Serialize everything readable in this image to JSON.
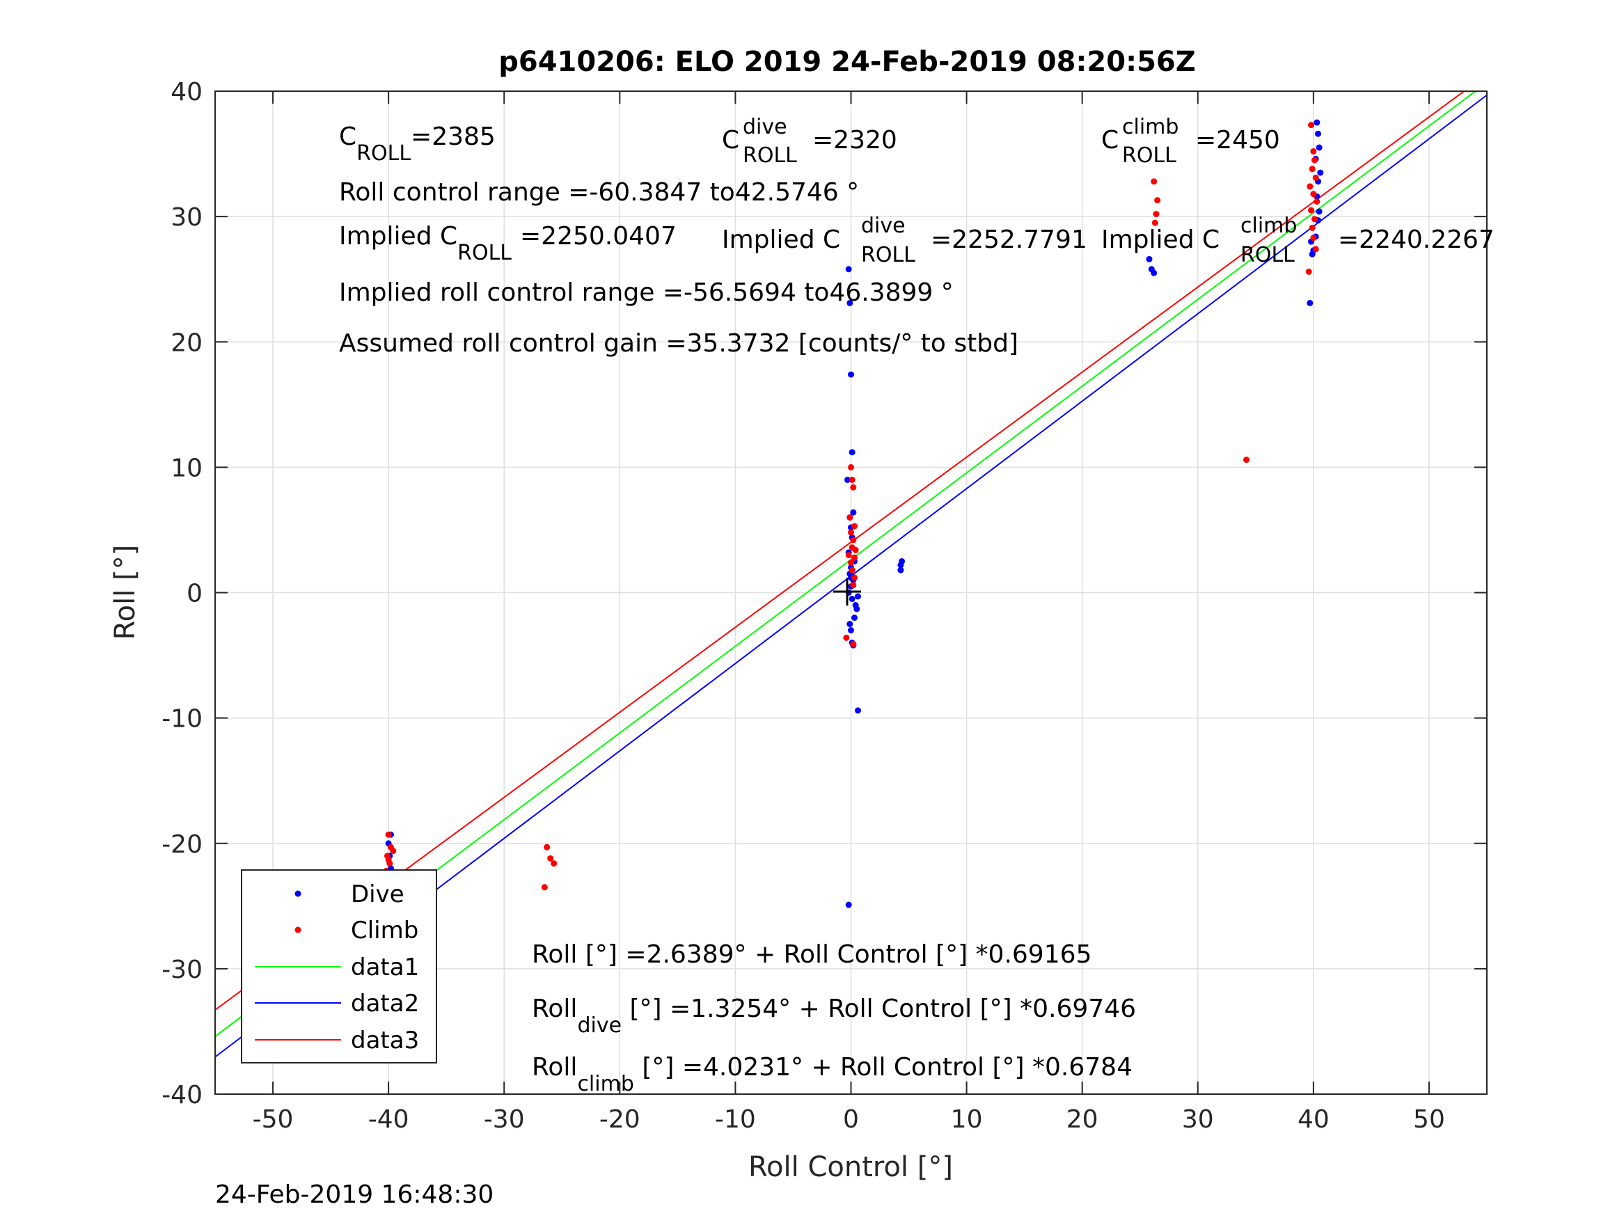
{
  "chart_data": {
    "type": "scatter",
    "title": "p6410206: ELO 2019 24-Feb-2019 08:20:56Z",
    "xlabel": "Roll Control [°]",
    "ylabel": "Roll [°]",
    "xlim": [
      -55,
      55
    ],
    "ylim": [
      -40,
      40
    ],
    "xticks": [
      -50,
      -40,
      -30,
      -20,
      -10,
      0,
      10,
      20,
      30,
      40,
      50
    ],
    "yticks": [
      -40,
      -30,
      -20,
      -10,
      0,
      10,
      20,
      30,
      40
    ],
    "xtick_labels": [
      "-50",
      "-40",
      "-30",
      "-20",
      "-10",
      "0",
      "10",
      "20",
      "30",
      "40",
      "50"
    ],
    "ytick_labels": [
      "-40",
      "-30",
      "-20",
      "-10",
      "0",
      "10",
      "20",
      "30",
      "40"
    ],
    "grid": true,
    "legend_position": "bottom-left",
    "series": [
      {
        "name": "Dive",
        "kind": "points",
        "color": "#0000ff",
        "x": [
          -39.8,
          -39.9,
          -40.1,
          -40.0,
          -39.7,
          -40.2,
          -39.9,
          -40.0,
          -39.6,
          -40.3,
          -39.8,
          -40.0,
          -39.9,
          -40.1,
          -39.8,
          -40.0,
          -0.2,
          -0.1,
          0.0,
          0.1,
          -0.3,
          0.2,
          -0.1,
          0.0,
          0.1,
          -0.2,
          0.3,
          0.0,
          -0.1,
          0.2,
          0.0,
          -0.2,
          0.1,
          0.4,
          0.5,
          0.6,
          0.3,
          -0.1,
          0.0,
          0.1,
          0.2,
          -0.2,
          0.0,
          4.3,
          4.3,
          4.4,
          25.8,
          26.2,
          26.0,
          40.3,
          40.4,
          40.5,
          40.2,
          40.6,
          40.4,
          40.3,
          40.5,
          39.7,
          40.0,
          40.2,
          40.4,
          39.9,
          39.8,
          40.1
        ],
        "y": [
          -19.3,
          -21.0,
          -22.5,
          -23.8,
          -24.5,
          -25.2,
          -25.9,
          -26.5,
          -27.1,
          -27.6,
          -28.0,
          -28.5,
          -26.0,
          -24.8,
          -22.0,
          -20.0,
          25.8,
          23.1,
          17.4,
          11.2,
          9.0,
          6.4,
          6.0,
          5.2,
          4.4,
          3.2,
          2.5,
          2.0,
          1.5,
          1.0,
          0.5,
          0.0,
          -0.5,
          -1.0,
          -1.3,
          -0.3,
          -2.0,
          -2.5,
          -3.0,
          -4.0,
          -4.2,
          -24.9,
          1.2,
          1.8,
          2.2,
          2.5,
          26.6,
          25.5,
          25.8,
          37.5,
          36.6,
          35.5,
          34.6,
          33.5,
          32.8,
          31.6,
          30.4,
          23.1,
          27.3,
          28.4,
          29.7,
          27.0,
          28.0,
          -9.4
        ],
        "note_last_point_x_override": [
          0.6
        ]
      },
      {
        "name": "Climb",
        "kind": "points",
        "color": "#ff0000",
        "x": [
          -40.0,
          -39.8,
          -40.1,
          -39.9,
          -40.2,
          -39.7,
          -40.0,
          -39.8,
          -40.1,
          -39.9,
          -40.0,
          -39.6,
          -40.3,
          -26.3,
          -26.0,
          -25.7,
          -26.5,
          0.0,
          0.1,
          0.2,
          -0.1,
          0.3,
          0.0,
          0.2,
          0.1,
          -0.2,
          0.0,
          0.1,
          0.3,
          0.2,
          -0.4,
          0.2,
          0.4,
          0.3,
          26.2,
          26.5,
          26.4,
          26.3,
          34.2,
          39.8,
          40.0,
          40.1,
          39.9,
          40.2,
          39.7,
          40.0,
          40.3,
          39.8,
          40.1,
          39.9,
          40.0,
          40.2,
          39.6
        ],
        "y": [
          -19.3,
          -20.3,
          -21.0,
          -21.6,
          -22.2,
          -22.8,
          -23.3,
          -23.8,
          -24.2,
          -24.6,
          -21.3,
          -20.6,
          -22.5,
          -20.3,
          -21.2,
          -21.6,
          -23.5,
          10.0,
          9.0,
          8.4,
          6.0,
          5.3,
          4.8,
          4.2,
          3.6,
          3.0,
          2.4,
          1.8,
          1.2,
          0.6,
          -3.6,
          -4.1,
          3.4,
          2.8,
          32.8,
          31.3,
          30.2,
          29.5,
          10.6,
          37.3,
          35.2,
          34.5,
          33.8,
          33.1,
          32.4,
          31.8,
          31.2,
          30.5,
          29.8,
          29.1,
          28.3,
          27.4,
          25.6
        ]
      },
      {
        "name": "data1",
        "kind": "line",
        "color": "#00ff00",
        "intercept": 2.6389,
        "slope": 0.69165
      },
      {
        "name": "data2",
        "kind": "line",
        "color": "#0000ff",
        "intercept": 1.3254,
        "slope": 0.69746
      },
      {
        "name": "data3",
        "kind": "line",
        "color": "#ff0000",
        "intercept": 4.0231,
        "slope": 0.6784
      }
    ],
    "annotations": {
      "c_roll": {
        "base": "C",
        "sub": "ROLL",
        "value": "=2385"
      },
      "c_roll_dive": {
        "base": "C",
        "sup": "dive",
        "sub": "ROLL",
        "value": "=2320"
      },
      "c_roll_climb": {
        "base": "C",
        "sup": "climb",
        "sub": "ROLL",
        "value": "=2450"
      },
      "roll_control_range": "Roll control range =-60.3847 to42.5746 °",
      "implied_c_roll": {
        "base": "Implied C",
        "sub": "ROLL",
        "value": "=2250.0407"
      },
      "implied_c_roll_dive": {
        "base": "Implied C",
        "sup": "dive",
        "sub": "ROLL",
        "value": "=2252.7791"
      },
      "implied_c_roll_climb": {
        "base": "Implied C",
        "sup": "climb",
        "sub": "ROLL",
        "value": "=2240.2267"
      },
      "implied_range": "Implied roll control range =-56.5694 to46.3899 °",
      "gain": "Assumed roll control gain =35.3732 [counts/° to stbd]",
      "fit_all": "Roll [°] =2.6389° + Roll Control [°] *0.69165",
      "fit_dive": {
        "base": "Roll",
        "sub": "dive",
        "rest": " [°] =1.3254° + Roll Control [°] *0.69746"
      },
      "fit_climb": {
        "base": "Roll",
        "sub": "climb",
        "rest": " [°] =4.0231° + Roll Control [°] *0.6784"
      }
    },
    "timestamp": "24-Feb-2019 16:48:30"
  }
}
